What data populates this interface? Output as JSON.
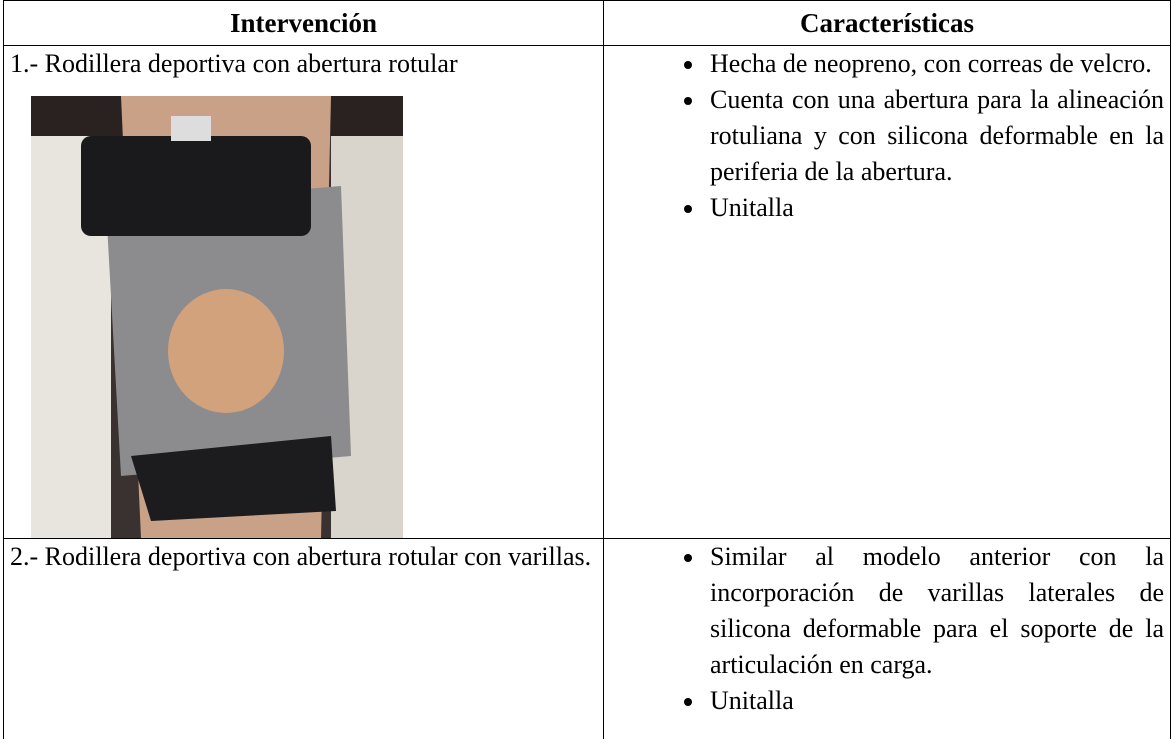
{
  "table": {
    "header": [
      "Intervención",
      "Características"
    ],
    "rows": [
      {
        "intervention": "1.- Rodillera deportiva con abertura rotular",
        "features": [
          "Hecha de neopreno, con correas de velcro.",
          "Cuenta con una abertura para la alineación rotuliana y con silicona deformable en la periferia de la abertura.",
          "Unitalla"
        ]
      },
      {
        "intervention": "2.- Rodillera deportiva con abertura rotular con varillas.",
        "features": [
          "Similar al modelo anterior con la incorporación de varillas laterales de silicona deformable para el soporte de la articulación en carga.",
          "Unitalla"
        ]
      }
    ]
  }
}
